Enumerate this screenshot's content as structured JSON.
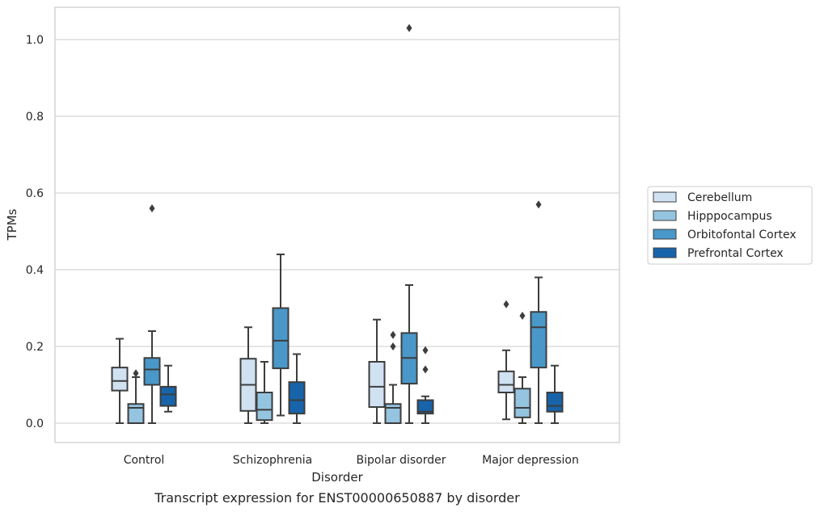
{
  "caption": "Transcript expression for ENST00000650887 by disorder",
  "chart_data": {
    "type": "box",
    "title": "",
    "xlabel": "Disorder",
    "ylabel": "TPMs",
    "ylim": [
      -0.05,
      1.08
    ],
    "yticks": [
      0.0,
      0.2,
      0.4,
      0.6,
      0.8,
      1.0
    ],
    "ytick_labels": [
      "0.0",
      "0.2",
      "0.4",
      "0.6",
      "0.8",
      "1.0"
    ],
    "grid": "horizontal",
    "legend_position": "right",
    "categories": [
      "Control",
      "Schizophrenia",
      "Bipolar disorder",
      "Major depression"
    ],
    "series": [
      {
        "name": "Cerebellum",
        "color": "#d0e1f2",
        "boxes": [
          {
            "whislo": 0.0,
            "q1": 0.085,
            "med": 0.11,
            "q3": 0.145,
            "whishi": 0.22,
            "fliers": []
          },
          {
            "whislo": 0.0,
            "q1": 0.032,
            "med": 0.1,
            "q3": 0.168,
            "whishi": 0.25,
            "fliers": []
          },
          {
            "whislo": 0.0,
            "q1": 0.042,
            "med": 0.095,
            "q3": 0.16,
            "whishi": 0.27,
            "fliers": []
          },
          {
            "whislo": 0.01,
            "q1": 0.08,
            "med": 0.1,
            "q3": 0.135,
            "whishi": 0.19,
            "fliers": [
              0.31
            ]
          }
        ]
      },
      {
        "name": "Hipppocampus",
        "color": "#94c4df",
        "boxes": [
          {
            "whislo": 0.0,
            "q1": 0.0,
            "med": 0.04,
            "q3": 0.05,
            "whishi": 0.12,
            "fliers": [
              0.13
            ]
          },
          {
            "whislo": 0.0,
            "q1": 0.008,
            "med": 0.035,
            "q3": 0.08,
            "whishi": 0.16,
            "fliers": []
          },
          {
            "whislo": 0.0,
            "q1": 0.0,
            "med": 0.04,
            "q3": 0.05,
            "whishi": 0.1,
            "fliers": [
              0.2,
              0.23
            ]
          },
          {
            "whislo": 0.0,
            "q1": 0.015,
            "med": 0.04,
            "q3": 0.09,
            "whishi": 0.12,
            "fliers": [
              0.28
            ]
          }
        ]
      },
      {
        "name": "Orbitofontal Cortex",
        "color": "#4a98c9",
        "boxes": [
          {
            "whislo": 0.0,
            "q1": 0.1,
            "med": 0.14,
            "q3": 0.17,
            "whishi": 0.24,
            "fliers": [
              0.56
            ]
          },
          {
            "whislo": 0.02,
            "q1": 0.143,
            "med": 0.215,
            "q3": 0.3,
            "whishi": 0.44,
            "fliers": []
          },
          {
            "whislo": 0.0,
            "q1": 0.103,
            "med": 0.17,
            "q3": 0.235,
            "whishi": 0.36,
            "fliers": [
              1.03
            ]
          },
          {
            "whislo": 0.0,
            "q1": 0.145,
            "med": 0.25,
            "q3": 0.29,
            "whishi": 0.38,
            "fliers": [
              0.57
            ]
          }
        ]
      },
      {
        "name": "Prefrontal Cortex",
        "color": "#1764ab",
        "boxes": [
          {
            "whislo": 0.03,
            "q1": 0.045,
            "med": 0.075,
            "q3": 0.095,
            "whishi": 0.15,
            "fliers": []
          },
          {
            "whislo": 0.0,
            "q1": 0.025,
            "med": 0.06,
            "q3": 0.107,
            "whishi": 0.18,
            "fliers": []
          },
          {
            "whislo": 0.0,
            "q1": 0.025,
            "med": 0.03,
            "q3": 0.06,
            "whishi": 0.07,
            "fliers": [
              0.14,
              0.19
            ]
          },
          {
            "whislo": 0.0,
            "q1": 0.03,
            "med": 0.045,
            "q3": 0.08,
            "whishi": 0.15,
            "fliers": []
          }
        ]
      }
    ]
  }
}
